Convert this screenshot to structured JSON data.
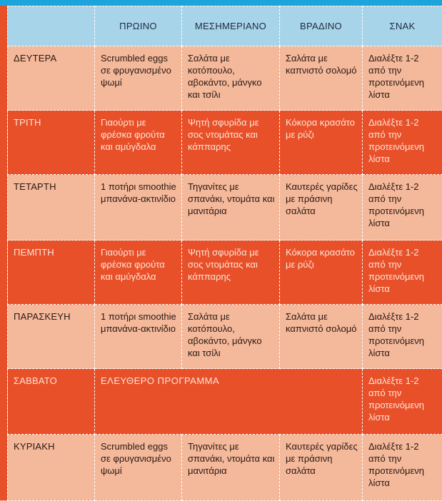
{
  "columns": [
    "ΠΡΩΙΝΟ",
    "ΜΕΣΗΜΕΡΙΑΝΟ",
    "ΒΡΑΔΙΝΟ",
    "ΣΝΑΚ"
  ],
  "rows": [
    {
      "day": "ΔΕΥΤΕΡΑ",
      "breakfast": "Scrumbled eggs σε φρυγανισμένο ψωμί",
      "lunch": "Σαλάτα με κοτόπουλο, αβοκάντο, μάνγκο και τσίλι",
      "dinner": "Σαλάτα με καπνιστό σολομό",
      "snack": "Διαλέξτε 1-2 από την προτεινόμενη λίστα"
    },
    {
      "day": "ΤΡΙΤΗ",
      "breakfast": "Γιαούρτι με φρέσκα φρούτα και αμύγδαλα",
      "lunch": "Ψητή σφυρίδα με σος ντομάτας και κάππαρης",
      "dinner": "Κόκορα κρασάτο με ρύζι",
      "snack": "Διαλέξτε 1-2 από την προτεινόμενη λίστα"
    },
    {
      "day": "ΤΕΤΑΡΤΗ",
      "breakfast": "1 ποτήρι smoothie μπανάνα-ακτινίδιο",
      "lunch": "Τηγανίτες με σπανάκι, ντομάτα και μανιτάρια",
      "dinner": "Καυτερές γαρίδες με πράσινη σαλάτα",
      "snack": "Διαλέξτε 1-2 από την προτεινόμενη λίστα"
    },
    {
      "day": "ΠΕΜΠΤΗ",
      "breakfast": "Γιαούρτι με φρέσκα φρούτα και αμύγδαλα",
      "lunch": "Ψητή σφυρίδα με σος ντομάτας και κάππαρης",
      "dinner": "Κόκορα κρασάτο με ρύζι",
      "snack": "Διαλέξτε 1-2 από την προτεινόμενη λίστα"
    },
    {
      "day": "ΠΑΡΑΣΚΕΥΗ",
      "breakfast": "1 ποτήρι smoothie μπανάνα-ακτινίδιο",
      "lunch": "Σαλάτα με κοτόπουλο, αβοκάντο, μάνγκο και τσίλι",
      "dinner": "Σαλάτα με καπνιστό σολομό",
      "snack": "Διαλέξτε 1-2 από την προτεινόμενη λίστα"
    },
    {
      "day": "ΣΑΒΒΑΤΟ",
      "free": "ΕΛΕΥΘΕΡΟ ΠΡΟΓΡΑΜΜΑ",
      "snack": "Διαλέξτε 1-2 από την προτεινόμενη λίστα"
    },
    {
      "day": "ΚΥΡΙΑΚΗ",
      "breakfast": "Scrumbled eggs σε φρυγανισμένο ψωμί",
      "lunch": "Τηγανίτες με σπανάκι, ντομάτα και μανιτάρια",
      "dinner": "Καυτερές γαρίδες με πράσινη σαλάτα",
      "snack": "Διαλέξτε 1-2 από την προτεινόμενη λίστα"
    }
  ],
  "colors": {
    "header_bg": "#a8d4ea",
    "top_bar": "#1ca4dc",
    "light_row": "#f4b89a",
    "dark_row": "#e8502a"
  }
}
